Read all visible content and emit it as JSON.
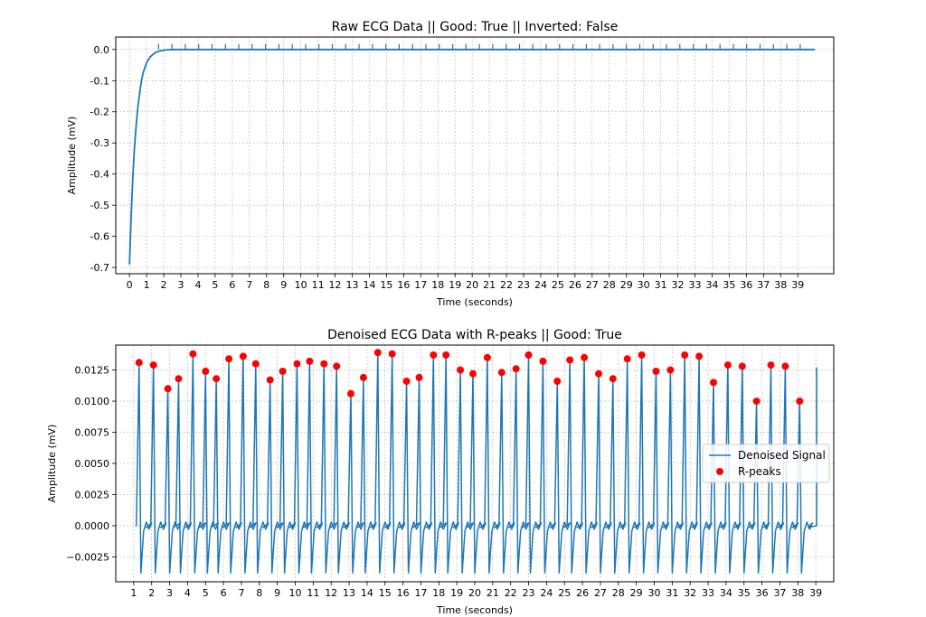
{
  "chart_data": [
    {
      "type": "line",
      "title": "Raw ECG Data || Good: True || Inverted: False",
      "xlabel": "Time (seconds)",
      "ylabel": "Amplitude (mV)",
      "xlim": [
        -0.8,
        41.1
      ],
      "ylim": [
        -0.72,
        0.04
      ],
      "grid": true,
      "xticks": [
        "0",
        "1",
        "2",
        "3",
        "4",
        "5",
        "6",
        "7",
        "8",
        "9",
        "10",
        "11",
        "12",
        "13",
        "14",
        "15",
        "16",
        "17",
        "18",
        "19",
        "20",
        "21",
        "22",
        "23",
        "24",
        "25",
        "26",
        "27",
        "28",
        "29",
        "30",
        "31",
        "32",
        "33",
        "34",
        "35",
        "36",
        "37",
        "38",
        "39"
      ],
      "yticks": [
        "0.0",
        "-0.1",
        "-0.2",
        "-0.3",
        "-0.4",
        "-0.5",
        "-0.6",
        "-0.7"
      ],
      "series": [
        {
          "color": "#1f77b4",
          "x": [
            0.0,
            0.1,
            0.2,
            0.3,
            0.4,
            0.5,
            0.6,
            0.7,
            0.8,
            1.0,
            1.2,
            1.5,
            1.8,
            2.2,
            2.6,
            3.0,
            40.0
          ],
          "y": [
            -0.69,
            -0.53,
            -0.41,
            -0.31,
            -0.24,
            -0.18,
            -0.14,
            -0.1,
            -0.075,
            -0.043,
            -0.024,
            -0.01,
            -0.004,
            -0.001,
            0.0,
            0.0,
            0.0
          ]
        }
      ]
    },
    {
      "type": "line",
      "title": "Denoised ECG Data with R-peaks || Good: True",
      "xlabel": "Time (seconds)",
      "ylabel": "Amplitude (mV)",
      "xlim": [
        0.0,
        40.0
      ],
      "ylim": [
        -0.0045,
        0.0145
      ],
      "grid": true,
      "legend": "center-right",
      "xticks": [
        "1",
        "2",
        "3",
        "4",
        "5",
        "6",
        "7",
        "8",
        "9",
        "10",
        "11",
        "12",
        "13",
        "14",
        "15",
        "16",
        "17",
        "18",
        "19",
        "20",
        "21",
        "22",
        "23",
        "24",
        "25",
        "26",
        "27",
        "28",
        "29",
        "30",
        "31",
        "32",
        "33",
        "34",
        "35",
        "36",
        "37",
        "38",
        "39"
      ],
      "yticks": [
        "−0.0025",
        "0.0000",
        "0.0025",
        "0.0050",
        "0.0075",
        "0.0100",
        "0.0125"
      ],
      "series": [
        {
          "name": "Denoised Signal",
          "color": "#1f77b4",
          "baseline": 0.0,
          "trough": -0.0038,
          "end_x": 39.05,
          "end_y": 0.0127
        },
        {
          "name": "R-peaks",
          "color": "#ff0000",
          "marker": "o",
          "x": [
            1.3,
            2.1,
            2.9,
            3.5,
            4.3,
            5.0,
            5.6,
            6.3,
            7.1,
            7.8,
            8.6,
            9.3,
            10.1,
            10.8,
            11.6,
            12.3,
            13.1,
            13.8,
            14.6,
            15.4,
            16.2,
            16.9,
            17.7,
            18.4,
            19.2,
            19.9,
            20.7,
            21.5,
            22.3,
            23.0,
            23.8,
            24.6,
            25.3,
            26.1,
            26.9,
            27.7,
            28.5,
            29.3,
            30.1,
            30.9,
            31.7,
            32.5,
            33.3,
            34.1,
            34.9,
            35.7,
            36.5,
            37.3,
            38.1
          ],
          "y": [
            0.0131,
            0.0129,
            0.011,
            0.0118,
            0.0138,
            0.0124,
            0.0118,
            0.0134,
            0.0136,
            0.013,
            0.0117,
            0.0124,
            0.013,
            0.0132,
            0.013,
            0.0128,
            0.0106,
            0.0119,
            0.0139,
            0.0138,
            0.0116,
            0.0119,
            0.0137,
            0.0137,
            0.0125,
            0.0122,
            0.0135,
            0.0123,
            0.0126,
            0.0137,
            0.0132,
            0.0116,
            0.0133,
            0.0135,
            0.0122,
            0.0118,
            0.0134,
            0.0137,
            0.0124,
            0.0125,
            0.0137,
            0.0136,
            0.0115,
            0.0129,
            0.0128,
            0.01,
            0.0129,
            0.0128,
            0.01
          ]
        }
      ]
    }
  ]
}
